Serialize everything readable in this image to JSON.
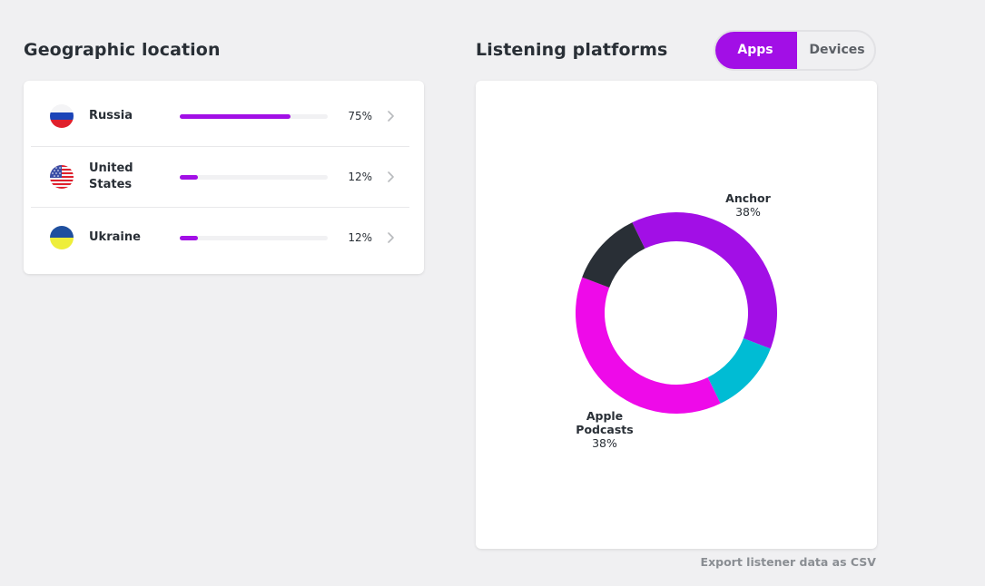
{
  "geographic": {
    "title": "Geographic location",
    "rows": [
      {
        "country": "Russia",
        "percent_label": "75%",
        "share": 0.75,
        "flag_icon": "russia-flag-icon"
      },
      {
        "country": "United States",
        "percent_label": "12%",
        "share": 0.12,
        "flag_icon": "usa-flag-icon"
      },
      {
        "country": "Ukraine",
        "percent_label": "12%",
        "share": 0.12,
        "flag_icon": "ukraine-flag-icon"
      }
    ],
    "bar_color": "#a20fe6",
    "chevron_icon": "chevron-right-icon"
  },
  "platforms": {
    "title": "Listening platforms",
    "toggle": {
      "apps": "Apps",
      "devices": "Devices",
      "selected": "Apps"
    },
    "accent_color": "#a20fe6"
  },
  "chart_data": {
    "type": "pie",
    "donut": true,
    "slices": [
      {
        "label": "Anchor",
        "value": 38,
        "value_label": "38%",
        "color": "#a20fe6"
      },
      {
        "label": "",
        "value": 12,
        "value_label": "",
        "color": "#00bcd4"
      },
      {
        "label": "Apple Podcasts",
        "value": 38,
        "value_label": "38%",
        "color": "#ee0ae9"
      },
      {
        "label": "",
        "value": 12,
        "value_label": "",
        "color": "#292f36"
      }
    ]
  },
  "export": {
    "label": "Export listener data as CSV"
  }
}
